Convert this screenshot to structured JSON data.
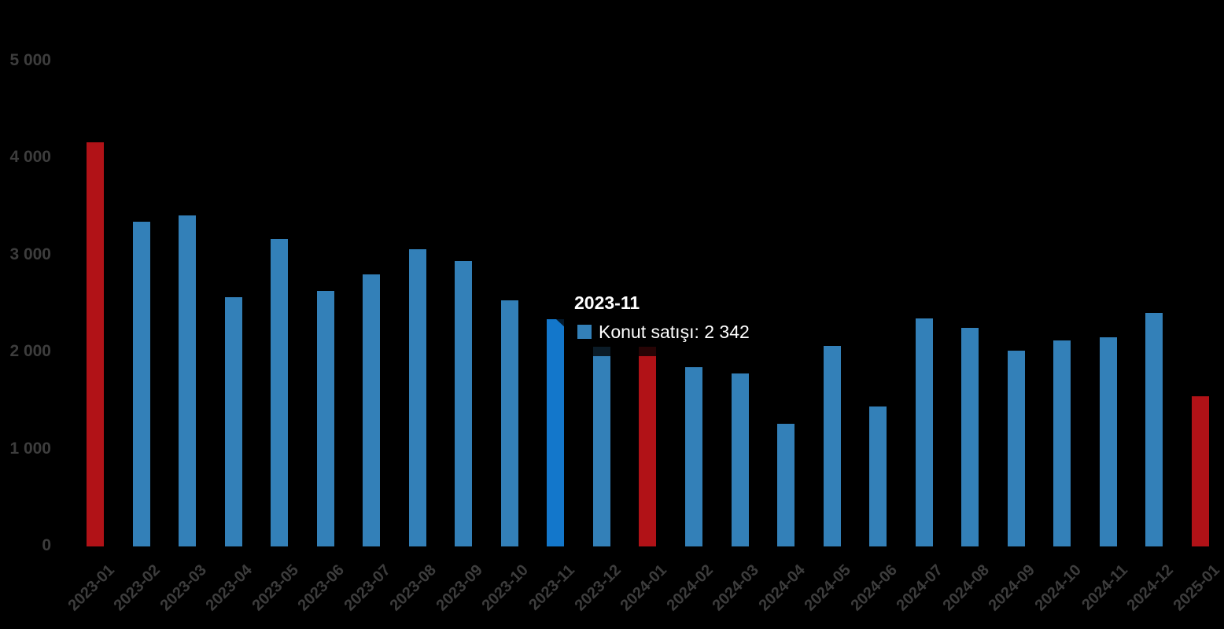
{
  "chart_data": {
    "type": "bar",
    "title": "",
    "xlabel": "",
    "ylabel": "",
    "grid": false,
    "legend_position": "none",
    "ylim": [
      0,
      5000
    ],
    "yticks": [
      {
        "value": 0,
        "label": "0"
      },
      {
        "value": 1000,
        "label": "1 000"
      },
      {
        "value": 2000,
        "label": "2 000"
      },
      {
        "value": 3000,
        "label": "3 000"
      },
      {
        "value": 4000,
        "label": "4 000"
      },
      {
        "value": 5000,
        "label": "5 000"
      }
    ],
    "categories": [
      "2023-01",
      "2023-02",
      "2023-03",
      "2023-04",
      "2023-05",
      "2023-06",
      "2023-07",
      "2023-08",
      "2023-09",
      "2023-10",
      "2023-11",
      "2023-12",
      "2024-01",
      "2024-02",
      "2024-03",
      "2024-04",
      "2024-05",
      "2024-06",
      "2024-07",
      "2024-08",
      "2024-09",
      "2024-10",
      "2024-11",
      "2024-12",
      "2025-01"
    ],
    "series": [
      {
        "name": "Konut satışı",
        "values": [
          4165,
          3350,
          3415,
          2570,
          3170,
          2630,
          2805,
          3060,
          2940,
          2540,
          2342,
          2060,
          2055,
          1850,
          1785,
          1265,
          2065,
          1440,
          2350,
          2255,
          2020,
          2120,
          2155,
          2410,
          1550
        ]
      }
    ],
    "red_indices": [
      0,
      12,
      24
    ],
    "highlight_index": 10
  },
  "tooltip": {
    "title": "2023-11",
    "series_label": "Konut satışı",
    "value_label": "2 342",
    "text": "Konut satışı: 2 342"
  },
  "colors": {
    "background": "#000000",
    "bar_blue": "#3380b8",
    "bar_red": "#b11217",
    "bar_highlight": "#1377cb",
    "axis_label": "#3d3d3d",
    "tooltip_text": "#ffffff"
  }
}
